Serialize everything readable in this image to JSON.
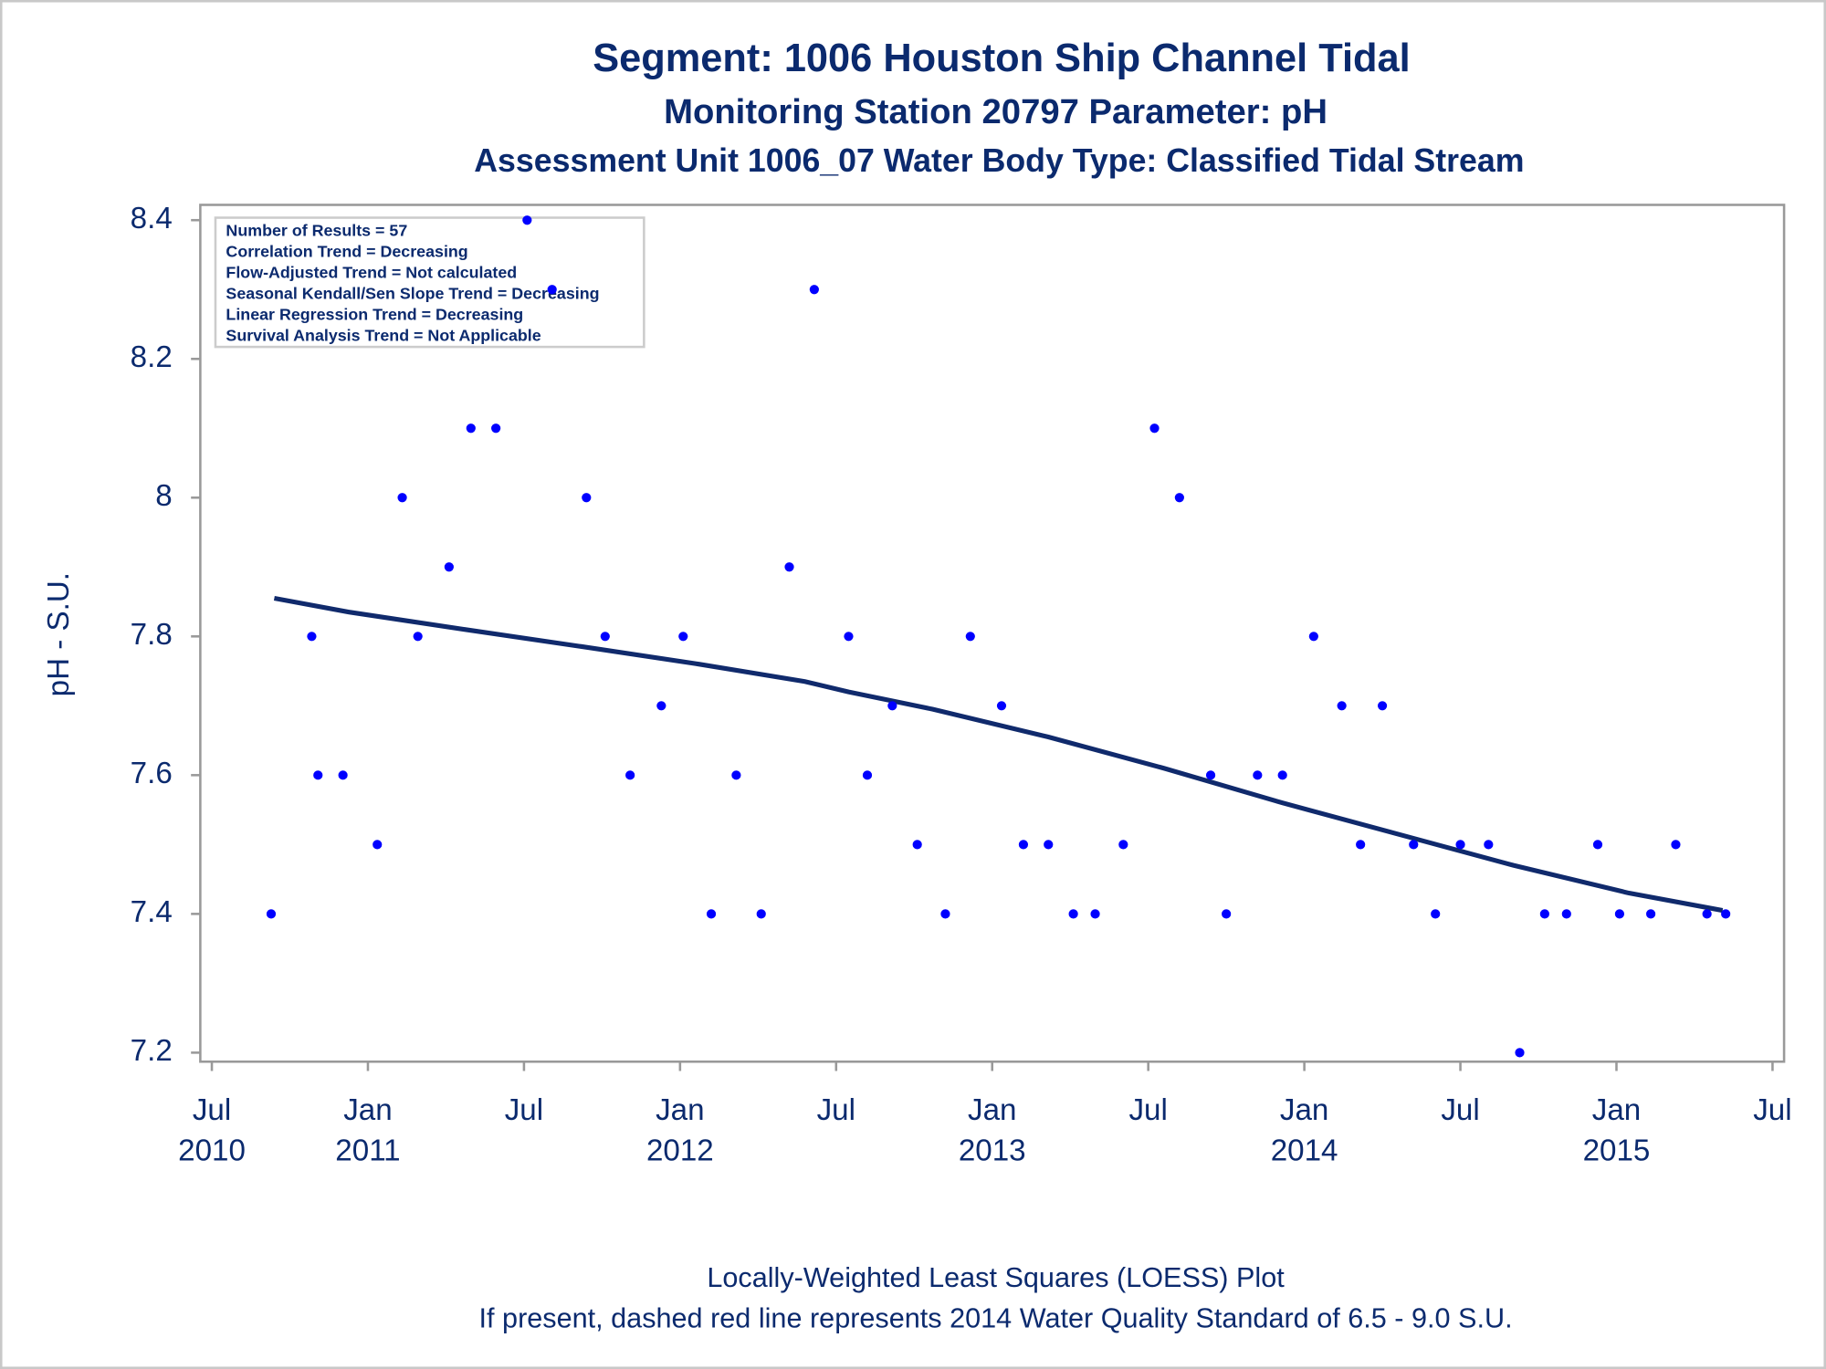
{
  "chart_data": {
    "type": "scatter",
    "title": "Segment: 1006  Houston Ship Channel Tidal",
    "subtitle": "Monitoring Station 20797 Parameter: pH",
    "subtitle2": "Assessment Unit 1006_07   Water Body Type: Classified Tidal Stream",
    "y_label": "pH - S.U.",
    "stats": [
      "Number of Results = 57",
      "Correlation Trend = Decreasing",
      "Flow-Adjusted Trend = Not calculated",
      "Seasonal Kendall/Sen Slope Trend = Decreasing",
      "Linear Regression Trend = Decreasing",
      "Survival Analysis Trend = Not Applicable"
    ],
    "footnotes": [
      "Locally-Weighted Least Squares (LOESS) Plot",
      "If present, dashed red line represents 2014 Water Quality Standard of 6.5 - 9.0 S.U."
    ],
    "xlim": [
      2010.463,
      2015.537
    ],
    "xticks": [
      {
        "value": 2010.5,
        "label": "Jul 2010"
      },
      {
        "value": 2011.0,
        "label": "Jan 2011"
      },
      {
        "value": 2011.5,
        "label": "Jul"
      },
      {
        "value": 2012.0,
        "label": "Jan 2012"
      },
      {
        "value": 2012.5,
        "label": "Jul"
      },
      {
        "value": 2013.0,
        "label": "Jan 2013"
      },
      {
        "value": 2013.5,
        "label": "Jul"
      },
      {
        "value": 2014.0,
        "label": "Jan 2014"
      },
      {
        "value": 2014.5,
        "label": "Jul"
      },
      {
        "value": 2015.0,
        "label": "Jan 2015"
      },
      {
        "value": 2015.5,
        "label": "Jul"
      }
    ],
    "ylim": [
      7.187,
      8.422
    ],
    "yticks": [
      7.2,
      7.4,
      7.6,
      7.8,
      8,
      8.2,
      8.4
    ],
    "points": {
      "color": "#0000ff",
      "x": [
        2010.69,
        2010.82,
        2010.84,
        2010.92,
        2011.03,
        2011.11,
        2011.16,
        2011.26,
        2011.33,
        2011.41,
        2011.51,
        2011.59,
        2011.7,
        2011.76,
        2011.84,
        2011.94,
        2012.01,
        2012.1,
        2012.18,
        2012.26,
        2012.35,
        2012.43,
        2012.54,
        2012.6,
        2012.68,
        2012.76,
        2012.85,
        2012.93,
        2013.03,
        2013.1,
        2013.18,
        2013.26,
        2013.33,
        2013.42,
        2013.52,
        2013.6,
        2013.7,
        2013.75,
        2013.85,
        2013.93,
        2014.03,
        2014.12,
        2014.18,
        2014.25,
        2014.35,
        2014.42,
        2014.5,
        2014.59,
        2014.69,
        2014.77,
        2014.84,
        2014.94,
        2015.01,
        2015.11,
        2015.19,
        2015.29,
        2015.35
      ],
      "values": [
        7.4,
        7.8,
        7.6,
        7.6,
        7.5,
        8.0,
        7.8,
        7.9,
        8.1,
        8.1,
        8.4,
        8.3,
        8.0,
        7.8,
        7.6,
        7.7,
        7.8,
        7.4,
        7.6,
        7.4,
        7.9,
        8.3,
        7.8,
        7.6,
        7.7,
        7.5,
        7.4,
        7.8,
        7.7,
        7.5,
        7.5,
        7.4,
        7.4,
        7.5,
        8.1,
        8.0,
        7.6,
        7.4,
        7.6,
        7.6,
        7.8,
        7.7,
        7.5,
        7.7,
        7.5,
        7.4,
        7.5,
        7.5,
        7.2,
        7.4,
        7.4,
        7.5,
        7.4,
        7.4,
        7.5,
        7.4,
        7.4
      ]
    },
    "loess": {
      "color": "#102a6c",
      "x": [
        2010.7,
        2010.94,
        2011.31,
        2011.69,
        2012.06,
        2012.4,
        2012.54,
        2012.81,
        2013.18,
        2013.55,
        2013.93,
        2014.3,
        2014.67,
        2015.04,
        2015.34
      ],
      "values": [
        7.855,
        7.835,
        7.81,
        7.785,
        7.76,
        7.735,
        7.72,
        7.695,
        7.655,
        7.61,
        7.56,
        7.515,
        7.47,
        7.43,
        7.405
      ]
    }
  }
}
